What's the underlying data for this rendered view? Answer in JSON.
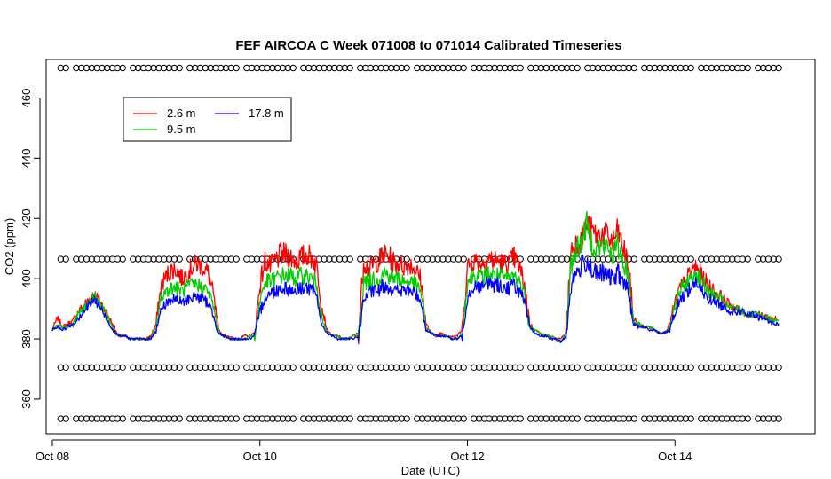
{
  "chart_data": {
    "type": "line",
    "title": "FEF AIRCOA C  Week 071008 to 071014  Calibrated Timeseries",
    "xlabel": "Date (UTC)",
    "ylabel": "CO2 (ppm)",
    "xlim": [
      -0.06,
      7.35
    ],
    "ylim": [
      348.5,
      472.8
    ],
    "x_units": "days since Oct 08 00:00 UTC",
    "x_ticks": [
      {
        "value": 0,
        "label": "Oct 08"
      },
      {
        "value": 2,
        "label": "Oct 10"
      },
      {
        "value": 4,
        "label": "Oct 12"
      },
      {
        "value": 6,
        "label": "Oct 14"
      }
    ],
    "y_ticks": [
      {
        "value": 360,
        "label": "360"
      },
      {
        "value": 380,
        "label": "380"
      },
      {
        "value": 400,
        "label": "400"
      },
      {
        "value": 420,
        "label": "420"
      },
      {
        "value": 440,
        "label": "440"
      },
      {
        "value": 460,
        "label": "460"
      }
    ],
    "legend": {
      "position": "top-left",
      "entries": [
        {
          "name": "2.6 m",
          "color": "#ff0000"
        },
        {
          "name": "9.5 m",
          "color": "#00cd00"
        },
        {
          "name": "17.8 m",
          "color": "#0000ff"
        }
      ]
    },
    "reference_series": [
      {
        "name": "ref-470",
        "marker": "circle",
        "y": 470
      },
      {
        "name": "ref-406",
        "marker": "circle",
        "y": 406.5
      },
      {
        "name": "ref-370",
        "marker": "circle",
        "y": 370.5
      },
      {
        "name": "ref-353",
        "marker": "circle",
        "y": 353.5
      }
    ],
    "series": [
      {
        "name": "2.6 m",
        "color": "#ff0000",
        "x": [
          0,
          0.05,
          0.1,
          0.15,
          0.2,
          0.25,
          0.3,
          0.35,
          0.4,
          0.45,
          0.5,
          0.55,
          0.6,
          0.65,
          0.7,
          0.75,
          0.8,
          0.85,
          0.9,
          0.95,
          1,
          1.05,
          1.1,
          1.15,
          1.2,
          1.25,
          1.3,
          1.35,
          1.4,
          1.45,
          1.5,
          1.55,
          1.6,
          1.65,
          1.7,
          1.75,
          1.8,
          1.85,
          1.9,
          1.95,
          2,
          2.05,
          2.1,
          2.15,
          2.2,
          2.25,
          2.3,
          2.35,
          2.4,
          2.45,
          2.5,
          2.55,
          2.6,
          2.65,
          2.7,
          2.75,
          2.8,
          2.85,
          2.9,
          2.95,
          3,
          3.05,
          3.1,
          3.15,
          3.2,
          3.25,
          3.3,
          3.35,
          3.4,
          3.45,
          3.5,
          3.55,
          3.6,
          3.65,
          3.7,
          3.75,
          3.8,
          3.85,
          3.9,
          3.95,
          4,
          4.05,
          4.1,
          4.15,
          4.2,
          4.25,
          4.3,
          4.35,
          4.4,
          4.45,
          4.5,
          4.55,
          4.6,
          4.65,
          4.7,
          4.75,
          4.8,
          4.85,
          4.9,
          4.95,
          5,
          5.05,
          5.1,
          5.15,
          5.2,
          5.25,
          5.3,
          5.35,
          5.4,
          5.45,
          5.5,
          5.55,
          5.6,
          5.65,
          5.7,
          5.75,
          5.8,
          5.85,
          5.9,
          5.95,
          6,
          6.05,
          6.1,
          6.15,
          6.2,
          6.25,
          6.3,
          6.35,
          6.4,
          6.45,
          6.5,
          6.55,
          6.6,
          6.65,
          6.7,
          6.75,
          6.8,
          6.85,
          6.9,
          6.95,
          7
        ],
        "y": [
          383,
          387,
          384,
          385,
          386,
          389,
          391,
          393,
          395,
          393,
          390,
          387,
          383,
          381,
          381,
          380,
          380,
          380,
          380,
          381,
          385,
          398,
          401,
          403,
          403,
          400,
          402,
          404,
          405,
          404,
          402,
          395,
          383,
          381,
          381,
          380,
          380,
          381,
          381,
          382,
          398,
          406,
          404,
          406,
          408,
          408,
          407,
          406,
          407,
          408,
          407,
          404,
          390,
          383,
          381,
          381,
          380,
          380,
          381,
          382,
          406,
          403,
          405,
          406,
          408,
          407,
          405,
          405,
          404,
          405,
          403,
          400,
          385,
          382,
          381,
          382,
          381,
          381,
          381,
          383,
          404,
          406,
          406,
          405,
          407,
          406,
          406,
          405,
          405,
          407,
          404,
          398,
          385,
          383,
          382,
          381,
          381,
          380,
          380,
          382,
          410,
          412,
          413,
          418,
          416,
          414,
          415,
          414,
          412,
          416,
          410,
          405,
          387,
          385,
          384,
          384,
          383,
          382,
          382,
          385,
          392,
          397,
          399,
          402,
          404,
          401,
          399,
          397,
          395,
          394,
          392,
          391,
          390,
          389,
          388,
          388,
          388,
          388,
          387,
          387,
          386
        ]
      },
      {
        "name": "9.5 m",
        "color": "#00cd00",
        "x": [
          0,
          0.05,
          0.1,
          0.15,
          0.2,
          0.25,
          0.3,
          0.35,
          0.4,
          0.45,
          0.5,
          0.55,
          0.6,
          0.65,
          0.7,
          0.75,
          0.8,
          0.85,
          0.9,
          0.95,
          1,
          1.05,
          1.1,
          1.15,
          1.2,
          1.25,
          1.3,
          1.35,
          1.4,
          1.45,
          1.5,
          1.55,
          1.6,
          1.65,
          1.7,
          1.75,
          1.8,
          1.85,
          1.9,
          1.95,
          2,
          2.05,
          2.1,
          2.15,
          2.2,
          2.25,
          2.3,
          2.35,
          2.4,
          2.45,
          2.5,
          2.55,
          2.6,
          2.65,
          2.7,
          2.75,
          2.8,
          2.85,
          2.9,
          2.95,
          3,
          3.05,
          3.1,
          3.15,
          3.2,
          3.25,
          3.3,
          3.35,
          3.4,
          3.45,
          3.5,
          3.55,
          3.6,
          3.65,
          3.7,
          3.75,
          3.8,
          3.85,
          3.9,
          3.95,
          4,
          4.05,
          4.1,
          4.15,
          4.2,
          4.25,
          4.3,
          4.35,
          4.4,
          4.45,
          4.5,
          4.55,
          4.6,
          4.65,
          4.7,
          4.75,
          4.8,
          4.85,
          4.9,
          4.95,
          5,
          5.05,
          5.1,
          5.15,
          5.2,
          5.25,
          5.3,
          5.35,
          5.4,
          5.45,
          5.5,
          5.55,
          5.6,
          5.65,
          5.7,
          5.75,
          5.8,
          5.85,
          5.9,
          5.95,
          6,
          6.05,
          6.1,
          6.15,
          6.2,
          6.25,
          6.3,
          6.35,
          6.4,
          6.45,
          6.5,
          6.55,
          6.6,
          6.65,
          6.7,
          6.75,
          6.8,
          6.85,
          6.9,
          6.95,
          7
        ],
        "y": [
          383,
          385,
          384,
          384,
          385,
          388,
          390,
          392,
          394,
          392,
          389,
          386,
          382,
          381,
          381,
          380,
          380,
          380,
          380,
          380,
          384,
          394,
          396,
          397,
          397,
          396,
          397,
          398,
          398,
          397,
          396,
          391,
          382,
          381,
          380,
          380,
          380,
          380,
          381,
          381,
          393,
          399,
          399,
          400,
          401,
          401,
          401,
          400,
          401,
          401,
          400,
          398,
          386,
          382,
          381,
          381,
          380,
          380,
          381,
          381,
          399,
          399,
          400,
          400,
          402,
          401,
          400,
          400,
          399,
          399,
          398,
          396,
          384,
          382,
          381,
          381,
          381,
          380,
          380,
          382,
          399,
          401,
          401,
          400,
          402,
          401,
          401,
          400,
          400,
          401,
          399,
          395,
          384,
          383,
          382,
          381,
          381,
          380,
          379,
          382,
          405,
          410,
          412,
          418,
          412,
          410,
          411,
          410,
          408,
          411,
          406,
          401,
          386,
          385,
          384,
          384,
          383,
          382,
          382,
          384,
          391,
          396,
          398,
          400,
          402,
          399,
          397,
          395,
          394,
          393,
          391,
          390,
          390,
          389,
          388,
          388,
          388,
          387,
          387,
          386,
          386
        ]
      },
      {
        "name": "17.8 m",
        "color": "#0000ff",
        "x": [
          0,
          0.05,
          0.1,
          0.15,
          0.2,
          0.25,
          0.3,
          0.35,
          0.4,
          0.45,
          0.5,
          0.55,
          0.6,
          0.65,
          0.7,
          0.75,
          0.8,
          0.85,
          0.9,
          0.95,
          1,
          1.05,
          1.1,
          1.15,
          1.2,
          1.25,
          1.3,
          1.35,
          1.4,
          1.45,
          1.5,
          1.55,
          1.6,
          1.65,
          1.7,
          1.75,
          1.8,
          1.85,
          1.9,
          1.95,
          2,
          2.05,
          2.1,
          2.15,
          2.2,
          2.25,
          2.3,
          2.35,
          2.4,
          2.45,
          2.5,
          2.55,
          2.6,
          2.65,
          2.7,
          2.75,
          2.8,
          2.85,
          2.9,
          2.95,
          3,
          3.05,
          3.1,
          3.15,
          3.2,
          3.25,
          3.3,
          3.35,
          3.4,
          3.45,
          3.5,
          3.55,
          3.6,
          3.65,
          3.7,
          3.75,
          3.8,
          3.85,
          3.9,
          3.95,
          4,
          4.05,
          4.1,
          4.15,
          4.2,
          4.25,
          4.3,
          4.35,
          4.4,
          4.45,
          4.5,
          4.55,
          4.6,
          4.65,
          4.7,
          4.75,
          4.8,
          4.85,
          4.9,
          4.95,
          5,
          5.05,
          5.1,
          5.15,
          5.2,
          5.25,
          5.3,
          5.35,
          5.4,
          5.45,
          5.5,
          5.55,
          5.6,
          5.65,
          5.7,
          5.75,
          5.8,
          5.85,
          5.9,
          5.95,
          6,
          6.05,
          6.1,
          6.15,
          6.2,
          6.25,
          6.3,
          6.35,
          6.4,
          6.45,
          6.5,
          6.55,
          6.6,
          6.65,
          6.7,
          6.75,
          6.8,
          6.85,
          6.9,
          6.95,
          7
        ],
        "y": [
          383,
          384,
          383,
          384,
          385,
          387,
          389,
          391,
          393,
          391,
          388,
          385,
          382,
          381,
          381,
          380,
          380,
          380,
          380,
          380,
          383,
          390,
          392,
          393,
          393,
          392,
          393,
          394,
          394,
          393,
          392,
          388,
          382,
          381,
          380,
          380,
          380,
          380,
          380,
          381,
          389,
          394,
          395,
          396,
          397,
          397,
          396,
          396,
          397,
          397,
          396,
          394,
          384,
          382,
          381,
          380,
          380,
          380,
          380,
          381,
          393,
          395,
          396,
          396,
          398,
          397,
          396,
          396,
          396,
          396,
          395,
          393,
          383,
          382,
          381,
          381,
          381,
          380,
          380,
          381,
          394,
          397,
          398,
          397,
          399,
          398,
          398,
          397,
          397,
          398,
          396,
          392,
          384,
          382,
          381,
          381,
          380,
          380,
          379,
          381,
          398,
          402,
          404,
          406,
          403,
          401,
          402,
          401,
          400,
          402,
          399,
          396,
          385,
          384,
          384,
          383,
          383,
          382,
          382,
          383,
          389,
          393,
          395,
          397,
          399,
          396,
          394,
          393,
          392,
          391,
          390,
          389,
          389,
          389,
          388,
          388,
          387,
          387,
          386,
          385,
          385
        ]
      }
    ]
  }
}
